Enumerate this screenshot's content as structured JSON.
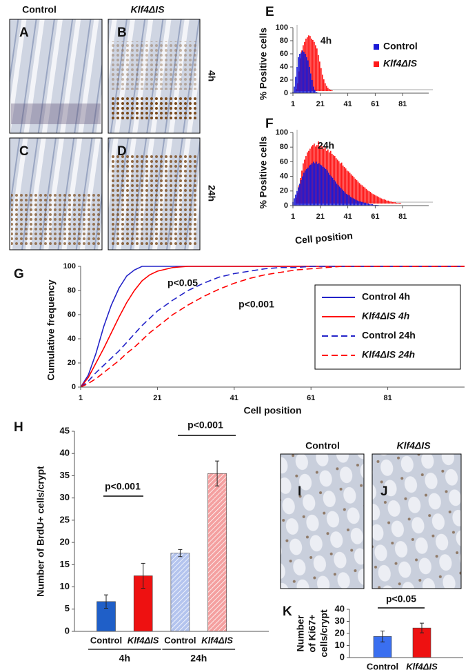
{
  "micrographs": {
    "columns": [
      "Control",
      "Klf4ΔIS"
    ],
    "rows": [
      "4h",
      "24h"
    ],
    "panels": [
      "A",
      "B",
      "C",
      "D"
    ]
  },
  "ki67_micrographs": {
    "columns": [
      "Control",
      "Klf4ΔIS"
    ],
    "panels": [
      "I",
      "J"
    ]
  },
  "chart_data": [
    {
      "panel": "E",
      "type": "bar",
      "title": "4h",
      "ylabel": "% Positive cells",
      "x": [
        1,
        2,
        3,
        4,
        5,
        6,
        7,
        8,
        9,
        10,
        11,
        12,
        13,
        14,
        15,
        16,
        17,
        18,
        19,
        20,
        21,
        22,
        23,
        24,
        25,
        26,
        27,
        28,
        29,
        30,
        31,
        32,
        33,
        34,
        35,
        36,
        37,
        38,
        39,
        40,
        41,
        42,
        43,
        44,
        45,
        46,
        47,
        48,
        49,
        50,
        51,
        52,
        53,
        54,
        55,
        56,
        57,
        58,
        59,
        60,
        61,
        62,
        63,
        64,
        65,
        66,
        67,
        68,
        69,
        70,
        71,
        72,
        73,
        74,
        75,
        76,
        77,
        78,
        79,
        80,
        81,
        82,
        83,
        84,
        85,
        86,
        87,
        88,
        89,
        90,
        91,
        92,
        93,
        94,
        95,
        96,
        97,
        98,
        99,
        100
      ],
      "series": [
        {
          "name": "Control",
          "color": "#1a1ad6",
          "values": [
            2,
            10,
            25,
            40,
            55,
            60,
            62,
            65,
            63,
            60,
            55,
            50,
            40,
            30,
            20,
            10,
            5,
            2,
            1,
            0,
            0,
            0,
            0,
            0,
            0,
            0,
            0,
            0,
            0,
            0,
            0,
            0,
            0,
            0,
            0,
            0,
            0,
            0,
            0,
            0,
            0,
            0,
            0,
            0,
            0,
            0,
            0,
            0,
            0,
            0,
            0,
            0,
            0,
            0,
            0,
            0,
            0,
            0,
            0,
            0,
            0,
            0,
            0,
            0,
            0,
            0,
            0,
            0,
            0,
            0,
            0,
            0,
            0,
            0,
            0,
            0,
            0,
            0,
            0,
            0,
            0,
            0,
            0,
            0,
            0,
            0,
            0,
            0,
            0,
            0,
            0,
            0,
            0,
            0,
            0,
            0,
            0,
            0,
            0,
            0
          ]
        },
        {
          "name": "Klf4ΔIS",
          "color": "#ff1a1a",
          "values": [
            3,
            12,
            30,
            50,
            62,
            70,
            75,
            80,
            82,
            85,
            84,
            80,
            78,
            75,
            70,
            65,
            55,
            45,
            35,
            25,
            18,
            12,
            8,
            5,
            3,
            2,
            1,
            0,
            0,
            0,
            0,
            0,
            0,
            0,
            0,
            0,
            0,
            0,
            0,
            0,
            0,
            0,
            0,
            0,
            0,
            0,
            0,
            0,
            0,
            0,
            0,
            0,
            0,
            0,
            0,
            0,
            0,
            0,
            0,
            0,
            0,
            0,
            0,
            0,
            0,
            0,
            0,
            0,
            0,
            0,
            0,
            0,
            0,
            0,
            0,
            0,
            0,
            0,
            0,
            0,
            0,
            0,
            0,
            0,
            0,
            0,
            0,
            0,
            0,
            0,
            0,
            0,
            0,
            0,
            0,
            0,
            0,
            0,
            0,
            0
          ]
        }
      ],
      "xlim": [
        1,
        100
      ],
      "ylim": [
        0,
        100
      ],
      "xticks": [
        1,
        21,
        41,
        61,
        81
      ],
      "yticks": [
        0,
        20,
        40,
        60,
        80,
        100
      ],
      "legend": "upper right"
    },
    {
      "panel": "F",
      "type": "bar",
      "title": "24h",
      "ylabel": "% Positive cells",
      "xlabel": "Cell position",
      "x": [
        1,
        2,
        3,
        4,
        5,
        6,
        7,
        8,
        9,
        10,
        11,
        12,
        13,
        14,
        15,
        16,
        17,
        18,
        19,
        20,
        21,
        22,
        23,
        24,
        25,
        26,
        27,
        28,
        29,
        30,
        31,
        32,
        33,
        34,
        35,
        36,
        37,
        38,
        39,
        40,
        41,
        42,
        43,
        44,
        45,
        46,
        47,
        48,
        49,
        50,
        51,
        52,
        53,
        54,
        55,
        56,
        57,
        58,
        59,
        60,
        61,
        62,
        63,
        64,
        65,
        66,
        67,
        68,
        69,
        70,
        71,
        72,
        73,
        74,
        75,
        76,
        77,
        78,
        79,
        80,
        81,
        82,
        83,
        84,
        85,
        86,
        87,
        88,
        89,
        90,
        91,
        92,
        93,
        94,
        95,
        96,
        97,
        98,
        99,
        100
      ],
      "series": [
        {
          "color": "#1a1ad6",
          "values": [
            5,
            10,
            15,
            20,
            25,
            30,
            35,
            40,
            45,
            48,
            50,
            52,
            55,
            56,
            58,
            60,
            58,
            60,
            57,
            58,
            56,
            55,
            53,
            52,
            50,
            48,
            45,
            42,
            40,
            38,
            35,
            33,
            30,
            28,
            26,
            24,
            22,
            20,
            18,
            16,
            15,
            14,
            12,
            11,
            10,
            9,
            8,
            7,
            6,
            6,
            5,
            5,
            4,
            4,
            3,
            3,
            2,
            2,
            2,
            1,
            1,
            1,
            1,
            0,
            0,
            0,
            0,
            0,
            0,
            0,
            0,
            0,
            0,
            0,
            0,
            0,
            0,
            0,
            0,
            0,
            0,
            0,
            0,
            0,
            0,
            0,
            0,
            0,
            0,
            0,
            0,
            0,
            0,
            0,
            0,
            0,
            0,
            0,
            0,
            0
          ]
        },
        {
          "color": "#ff1a1a",
          "values": [
            8,
            15,
            25,
            35,
            45,
            55,
            60,
            65,
            70,
            72,
            75,
            78,
            80,
            82,
            78,
            80,
            85,
            76,
            80,
            78,
            75,
            78,
            72,
            74,
            70,
            72,
            68,
            66,
            65,
            62,
            60,
            58,
            55,
            56,
            52,
            50,
            48,
            45,
            44,
            42,
            40,
            38,
            36,
            34,
            32,
            30,
            28,
            26,
            25,
            23,
            22,
            20,
            18,
            17,
            16,
            14,
            13,
            12,
            11,
            10,
            9,
            8,
            7,
            6,
            6,
            5,
            4,
            4,
            3,
            3,
            2,
            2,
            2,
            1,
            1,
            1,
            1,
            0,
            0,
            0,
            0,
            0,
            0,
            0,
            0,
            0,
            0,
            0,
            0,
            0,
            0,
            0,
            0,
            0,
            0,
            0,
            0,
            0,
            0,
            0
          ]
        }
      ],
      "xlim": [
        1,
        100
      ],
      "ylim": [
        0,
        100
      ],
      "xticks": [
        1,
        21,
        41,
        61,
        81
      ],
      "yticks": [
        0,
        20,
        40,
        60,
        80,
        100
      ]
    },
    {
      "panel": "G",
      "type": "line",
      "ylabel": "Cumulative frequency",
      "xlabel": "Cell position",
      "x": [
        1,
        3,
        5,
        7,
        9,
        11,
        13,
        15,
        17,
        19,
        21,
        25,
        29,
        33,
        37,
        41,
        45,
        49,
        53,
        57,
        61,
        65,
        69,
        73,
        77,
        81,
        85,
        89,
        93,
        97,
        101
      ],
      "series": [
        {
          "name": "Control 4h",
          "color": "#2323c8",
          "dash": false,
          "values": [
            0,
            10,
            28,
            50,
            68,
            82,
            92,
            97,
            100,
            100,
            100,
            100,
            100,
            100,
            100,
            100,
            100,
            100,
            100,
            100,
            100,
            100,
            100,
            100,
            100,
            100,
            100,
            100,
            100,
            100,
            100
          ]
        },
        {
          "name": "Klf4ΔIS 4h",
          "color": "#ff0000",
          "dash": false,
          "values": [
            0,
            8,
            20,
            32,
            45,
            58,
            70,
            80,
            88,
            93,
            96,
            99,
            100,
            100,
            100,
            100,
            100,
            100,
            100,
            100,
            100,
            100,
            100,
            100,
            100,
            100,
            100,
            100,
            100,
            100,
            100
          ]
        },
        {
          "name": "Control 24h",
          "color": "#2323c8",
          "dash": true,
          "values": [
            0,
            5,
            12,
            18,
            24,
            30,
            37,
            44,
            51,
            57,
            63,
            72,
            80,
            86,
            91,
            94,
            96,
            98,
            99,
            99,
            100,
            100,
            100,
            100,
            100,
            100,
            100,
            100,
            100,
            100,
            100
          ]
        },
        {
          "name": "Klf4ΔIS 24h",
          "color": "#ff0000",
          "dash": true,
          "values": [
            0,
            3,
            7,
            12,
            17,
            22,
            28,
            33,
            39,
            45,
            50,
            60,
            68,
            75,
            81,
            86,
            90,
            93,
            95,
            97,
            98,
            99,
            100,
            100,
            100,
            100,
            100,
            100,
            100,
            100,
            100
          ]
        }
      ],
      "xlim": [
        1,
        101
      ],
      "ylim": [
        0,
        100
      ],
      "xticks": [
        1,
        21,
        41,
        61,
        81
      ],
      "yticks": [
        0,
        20,
        40,
        60,
        80,
        100
      ],
      "legend": "upper right",
      "annotations": [
        "p<0.05",
        "p<0.001"
      ]
    },
    {
      "panel": "H",
      "type": "bar",
      "ylabel": "Number of BrdU+ cells/crypt",
      "categories": [
        "Control",
        "Klf4ΔIS",
        "Control",
        "Klf4ΔIS"
      ],
      "groups": [
        "4h",
        "24h"
      ],
      "values": [
        6.7,
        12.5,
        17.6,
        35.5
      ],
      "errors": [
        1.5,
        2.8,
        0.8,
        2.8
      ],
      "colors": [
        "#1f5fc8",
        "#ee1111",
        "#b4c4ee",
        "#f4a0a0"
      ],
      "hatched": [
        false,
        false,
        true,
        true
      ],
      "ylim": [
        0,
        45
      ],
      "yticks": [
        0,
        5,
        10,
        15,
        20,
        25,
        30,
        35,
        40,
        45
      ],
      "annotations": [
        "p<0.001",
        "p<0.001"
      ]
    },
    {
      "panel": "K",
      "type": "bar",
      "ylabel": [
        "Number",
        "of Ki67+",
        "cells/crypt"
      ],
      "categories": [
        "Control",
        "Klf4ΔIS"
      ],
      "values": [
        17.5,
        24.5
      ],
      "errors": [
        4.5,
        4
      ],
      "colors": [
        "#3a6ff0",
        "#ee1111"
      ],
      "hatched": [
        false,
        false
      ],
      "ylim": [
        0,
        40
      ],
      "yticks": [
        0,
        10,
        20,
        30,
        40
      ],
      "annotations": [
        "p<0.05"
      ]
    }
  ]
}
